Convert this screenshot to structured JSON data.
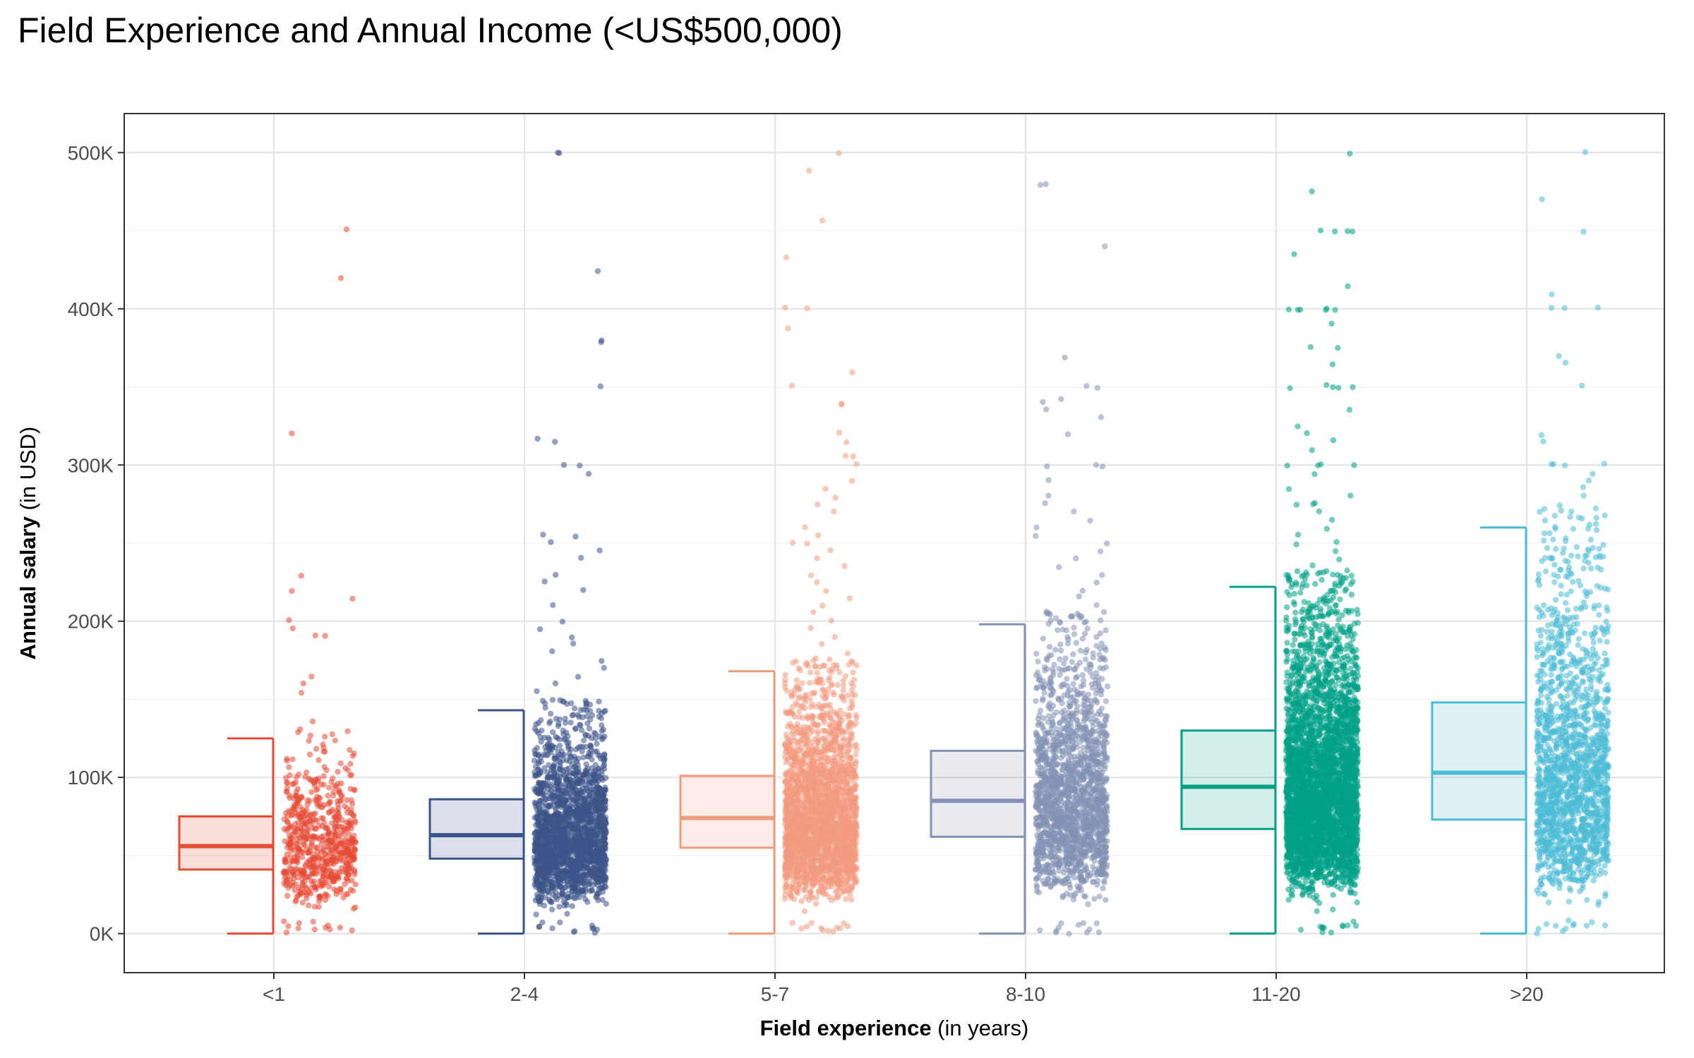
{
  "chart_data": {
    "type": "boxplot-jitter",
    "title": "Field Experience and Annual Income (<US$500,000)",
    "xlabel": {
      "bold": "Field experience",
      "rest": " (in years)"
    },
    "ylabel": {
      "bold": "Annual salary",
      "rest": " (in USD)"
    },
    "ylim": [
      -25000,
      525000
    ],
    "y_ticks": [
      0,
      100000,
      200000,
      300000,
      400000,
      500000
    ],
    "y_tick_labels": [
      "0K",
      "100K",
      "200K",
      "300K",
      "400K",
      "500K"
    ],
    "grid": true,
    "categories": [
      "<1",
      "2-4",
      "5-7",
      "8-10",
      "11-20",
      ">20"
    ],
    "series": [
      {
        "category": "<1",
        "color": "#E64B35",
        "lower_whisker": 0,
        "q1": 41000,
        "median": 56000,
        "q3": 75000,
        "upper_whisker": 125000,
        "n_points": 650,
        "outliers": [
          450000,
          420000,
          320000,
          230000,
          220000,
          215000,
          200000,
          195000,
          190000,
          190000,
          165000,
          160000,
          155000,
          135000
        ]
      },
      {
        "category": "2-4",
        "color": "#3C5488",
        "lower_whisker": 0,
        "q1": 48000,
        "median": 63000,
        "q3": 86000,
        "upper_whisker": 143000,
        "n_points": 2000,
        "outliers": [
          500000,
          500000,
          425000,
          380000,
          378000,
          350000,
          317000,
          315000,
          300000,
          300000,
          295000,
          255000,
          255000,
          250000,
          245000,
          240000,
          230000,
          225000,
          220000,
          210000,
          200000,
          195000,
          190000,
          185000,
          180000,
          175000,
          170000,
          165000,
          160000,
          155000,
          150000,
          148000
        ]
      },
      {
        "category": "5-7",
        "color": "#F39B7F",
        "lower_whisker": 0,
        "q1": 55000,
        "median": 74000,
        "q3": 101000,
        "upper_whisker": 168000,
        "n_points": 2400,
        "outliers": [
          500000,
          488000,
          457000,
          432000,
          400000,
          400000,
          388000,
          360000,
          350000,
          340000,
          338000,
          320000,
          315000,
          305000,
          305000,
          300000,
          290000,
          285000,
          280000,
          275000,
          270000,
          260000,
          255000,
          250000,
          250000,
          245000,
          240000,
          235000,
          230000,
          225000,
          220000,
          215000,
          210000,
          205000,
          200000,
          195000,
          190000,
          185000,
          180000,
          175000,
          172000
        ]
      },
      {
        "category": "8-10",
        "color": "#8491B4",
        "lower_whisker": 0,
        "q1": 62000,
        "median": 85000,
        "q3": 117000,
        "upper_whisker": 198000,
        "n_points": 1800,
        "outliers": [
          480000,
          480000,
          440000,
          368000,
          350000,
          350000,
          343000,
          340000,
          335000,
          330000,
          320000,
          300000,
          300000,
          300000,
          290000,
          280000,
          275000,
          270000,
          265000,
          260000,
          255000,
          250000,
          245000,
          240000,
          235000,
          230000,
          225000,
          220000,
          215000,
          210000,
          205000,
          200000
        ]
      },
      {
        "category": "11-20",
        "color": "#00A087",
        "lower_whisker": 0,
        "q1": 67000,
        "median": 94000,
        "q3": 130000,
        "upper_whisker": 222000,
        "n_points": 3600,
        "outliers": [
          500000,
          475000,
          450000,
          450000,
          450000,
          450000,
          435000,
          415000,
          400000,
          400000,
          400000,
          400000,
          400000,
          400000,
          390000,
          375000,
          375000,
          365000,
          352000,
          350000,
          350000,
          350000,
          350000,
          335000,
          325000,
          320000,
          315000,
          310000,
          300000,
          300000,
          300000,
          300000,
          295000,
          285000,
          280000,
          275000,
          275000,
          275000,
          270000,
          265000,
          260000,
          255000,
          250000,
          250000,
          245000,
          240000,
          235000,
          230000,
          225000
        ]
      },
      {
        "category": ">20",
        "color": "#4DBBD5",
        "lower_whisker": 0,
        "q1": 73000,
        "median": 103000,
        "q3": 148000,
        "upper_whisker": 260000,
        "n_points": 1700,
        "outliers": [
          500000,
          470000,
          450000,
          410000,
          400000,
          400000,
          400000,
          370000,
          365000,
          350000,
          320000,
          315000,
          300000,
          300000,
          300000,
          300000,
          295000,
          290000,
          285000,
          280000,
          275000,
          270000,
          265000
        ]
      }
    ]
  }
}
